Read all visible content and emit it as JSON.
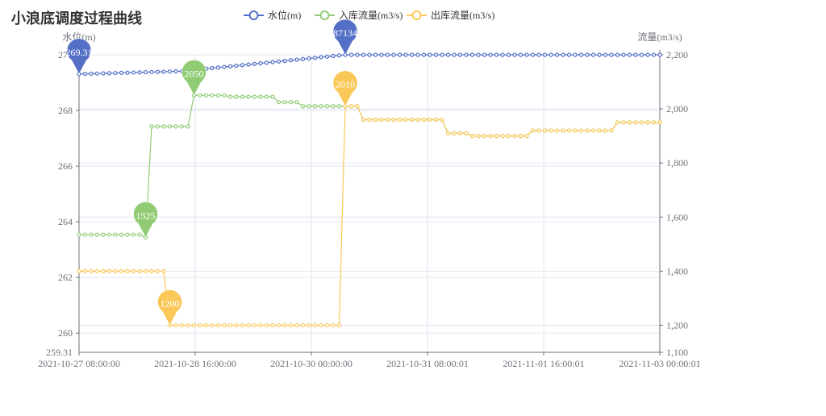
{
  "page": {
    "title": "小浪底调度过程曲线"
  },
  "chart_data": {
    "type": "line",
    "title": "小浪底调度过程曲线",
    "left_axis": {
      "label": "水位(m)",
      "min": 259.31,
      "max": 270,
      "ticks": [
        260,
        262,
        264,
        266,
        268,
        270
      ],
      "min_label": "259.31"
    },
    "right_axis": {
      "label": "流量(m3/s)",
      "min": 1100,
      "max": 2200,
      "ticks": [
        1100,
        1200,
        1400,
        1600,
        1800,
        2000,
        2200
      ],
      "tick_labels": [
        "1,100",
        "1,200",
        "1,400",
        "1,600",
        "1,800",
        "2,000",
        "2,200"
      ]
    },
    "x_ticks": [
      "2021-10-27 08:00:00",
      "2021-10-28 16:00:00",
      "2021-10-30 00:00:00",
      "2021-10-31 08:00:01",
      "2021-11-01 16:00:01",
      "2021-11-03 00:00:01"
    ],
    "x_count": 97,
    "legend": {
      "position": "top"
    },
    "series": [
      {
        "name": "水位(m)",
        "color": "#5470c6",
        "axis": "left",
        "steps": [
          {
            "from": 0,
            "to": 20,
            "start": 269.31,
            "end": 269.43
          },
          {
            "from": 21,
            "to": 44,
            "start": 269.5,
            "end": 270.0
          },
          {
            "from": 45,
            "to": 96,
            "start": 270.0,
            "end": 270.0
          }
        ],
        "markers": [
          {
            "index": 0,
            "value": 269.31,
            "label": "269.31"
          },
          {
            "index": 44,
            "value": 270.0,
            "label": "87134"
          }
        ]
      },
      {
        "name": "入库流量(m3/s)",
        "color": "#91cc75",
        "axis": "right",
        "steps": [
          {
            "from": 0,
            "to": 10,
            "value": 1535
          },
          {
            "from": 11,
            "to": 11,
            "value": 1525
          },
          {
            "from": 12,
            "to": 18,
            "value": 1935
          },
          {
            "from": 19,
            "to": 24,
            "value": 2050
          },
          {
            "from": 25,
            "to": 32,
            "value": 2045
          },
          {
            "from": 33,
            "to": 36,
            "value": 2025
          },
          {
            "from": 37,
            "to": 46,
            "value": 2010
          },
          {
            "from": 47,
            "to": 60,
            "value": 1960
          },
          {
            "from": 61,
            "to": 64,
            "value": 1910
          },
          {
            "from": 65,
            "to": 74,
            "value": 1900
          },
          {
            "from": 75,
            "to": 88,
            "value": 1920
          },
          {
            "from": 89,
            "to": 96,
            "value": 1950
          }
        ],
        "markers": [
          {
            "index": 11,
            "value": 1525,
            "label": "1525"
          },
          {
            "index": 19,
            "value": 2050,
            "label": "2050"
          }
        ]
      },
      {
        "name": "出库流量(m3/s)",
        "color": "#fac858",
        "axis": "right",
        "steps": [
          {
            "from": 0,
            "to": 14,
            "value": 1400
          },
          {
            "from": 15,
            "to": 43,
            "value": 1200
          },
          {
            "from": 44,
            "to": 46,
            "value": 2010
          },
          {
            "from": 47,
            "to": 60,
            "value": 1960
          },
          {
            "from": 61,
            "to": 64,
            "value": 1910
          },
          {
            "from": 65,
            "to": 74,
            "value": 1900
          },
          {
            "from": 75,
            "to": 88,
            "value": 1920
          },
          {
            "from": 89,
            "to": 96,
            "value": 1950
          }
        ],
        "markers": [
          {
            "index": 15,
            "value": 1200,
            "label": "1200"
          },
          {
            "index": 44,
            "value": 2010,
            "label": "2010"
          }
        ]
      }
    ]
  }
}
